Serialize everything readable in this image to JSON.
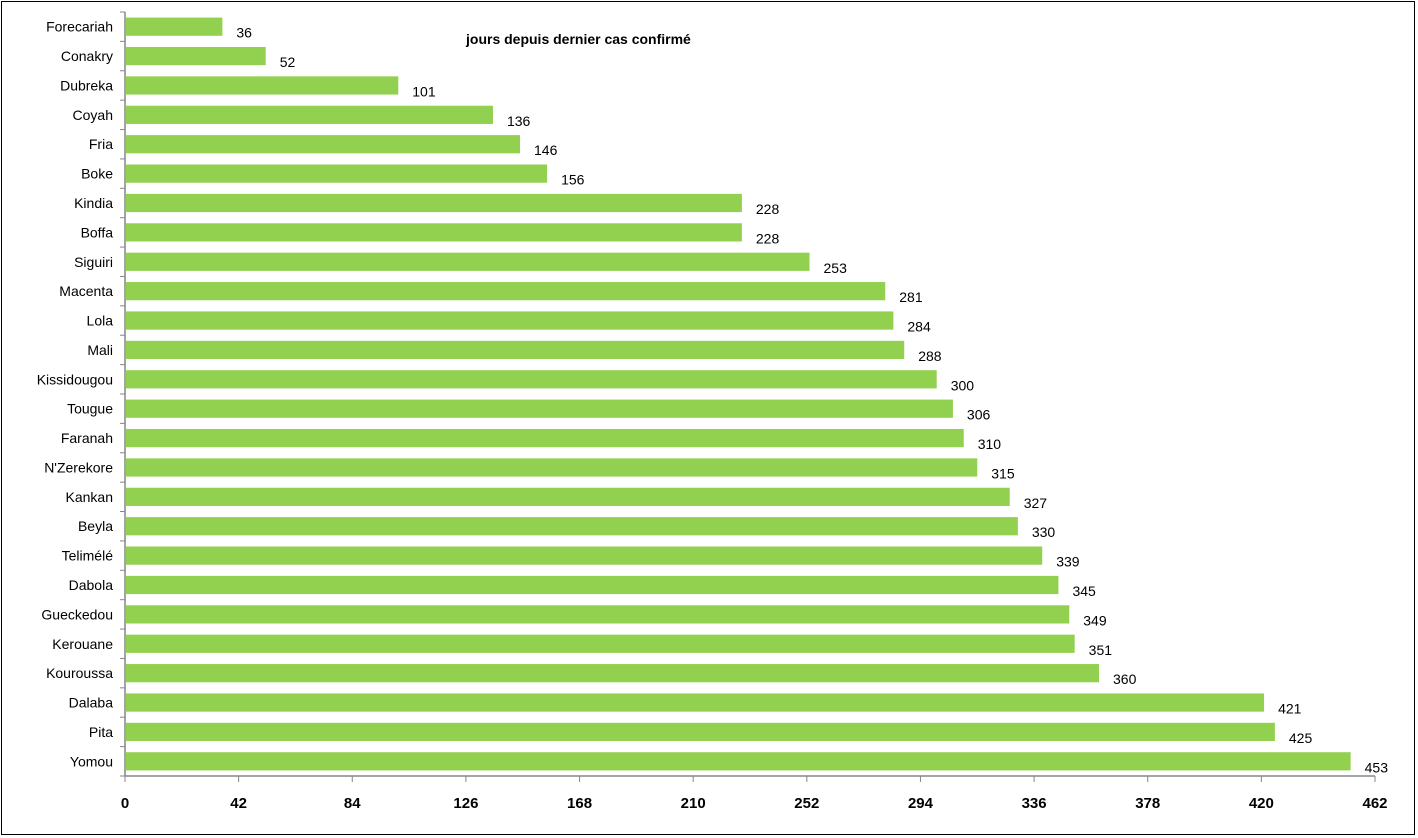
{
  "chart_data": {
    "type": "bar",
    "orientation": "horizontal",
    "title": "jours depuis dernier cas confirmé",
    "xlabel": "",
    "ylabel": "",
    "categories": [
      "Forecariah",
      "Conakry",
      "Dubreka",
      "Coyah",
      "Fria",
      "Boke",
      "Kindia",
      "Boffa",
      "Siguiri",
      "Macenta",
      "Lola",
      "Mali",
      "Kissidougou",
      "Tougue",
      "Faranah",
      "N'Zerekore",
      "Kankan",
      "Beyla",
      "Telimélé",
      "Dabola",
      "Gueckedou",
      "Kerouane",
      "Kouroussa",
      "Dalaba",
      "Pita",
      "Yomou"
    ],
    "values": [
      36,
      52,
      101,
      136,
      146,
      156,
      228,
      228,
      253,
      281,
      284,
      288,
      300,
      306,
      310,
      315,
      327,
      330,
      339,
      345,
      349,
      351,
      360,
      421,
      425,
      453
    ],
    "xlim": [
      0,
      462
    ],
    "xticks": [
      "0",
      "42",
      "84",
      "126",
      "168",
      "210",
      "252",
      "294",
      "336",
      "378",
      "420",
      "462"
    ],
    "grid": false,
    "legend": "none",
    "colors": {
      "bar": "#92d050",
      "axis": "#868686"
    }
  }
}
